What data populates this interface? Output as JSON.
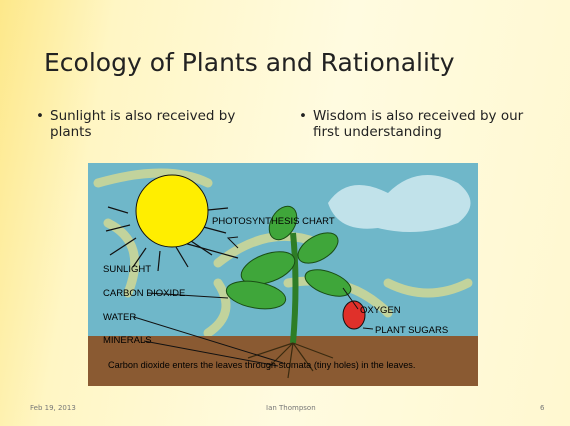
{
  "title": "Ecology of Plants and Rationality",
  "bullets": [
    "Sunlight is also received by plants",
    "Wisdom is also received by our first understanding"
  ],
  "diagram": {
    "labels": [
      "PHOTOSYNTHESIS CHART",
      "SUNLIGHT",
      "CARBON DIOXIDE",
      "WATER",
      "MINERALS",
      "OXYGEN",
      "PLANT SUGARS"
    ],
    "caption": "Carbon dioxide enters the leaves through stomata (tiny holes) in the leaves."
  },
  "footer": {
    "date": "Feb 19, 2013",
    "author": "Ian Thompson",
    "page": "6"
  }
}
